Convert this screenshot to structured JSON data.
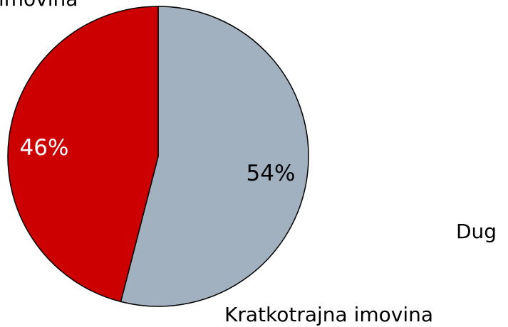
{
  "chart_data": {
    "type": "pie",
    "categories": [
      "Kratkotrajna imovina",
      null
    ],
    "values": [
      54,
      46
    ],
    "value_labels": [
      "54%",
      "46%"
    ],
    "colors": [
      "#a2b1c0",
      "#cc0000"
    ],
    "value_label_colors": [
      "#000000",
      "#ffffff"
    ],
    "annotations": [
      "imovina",
      "Dug"
    ]
  }
}
